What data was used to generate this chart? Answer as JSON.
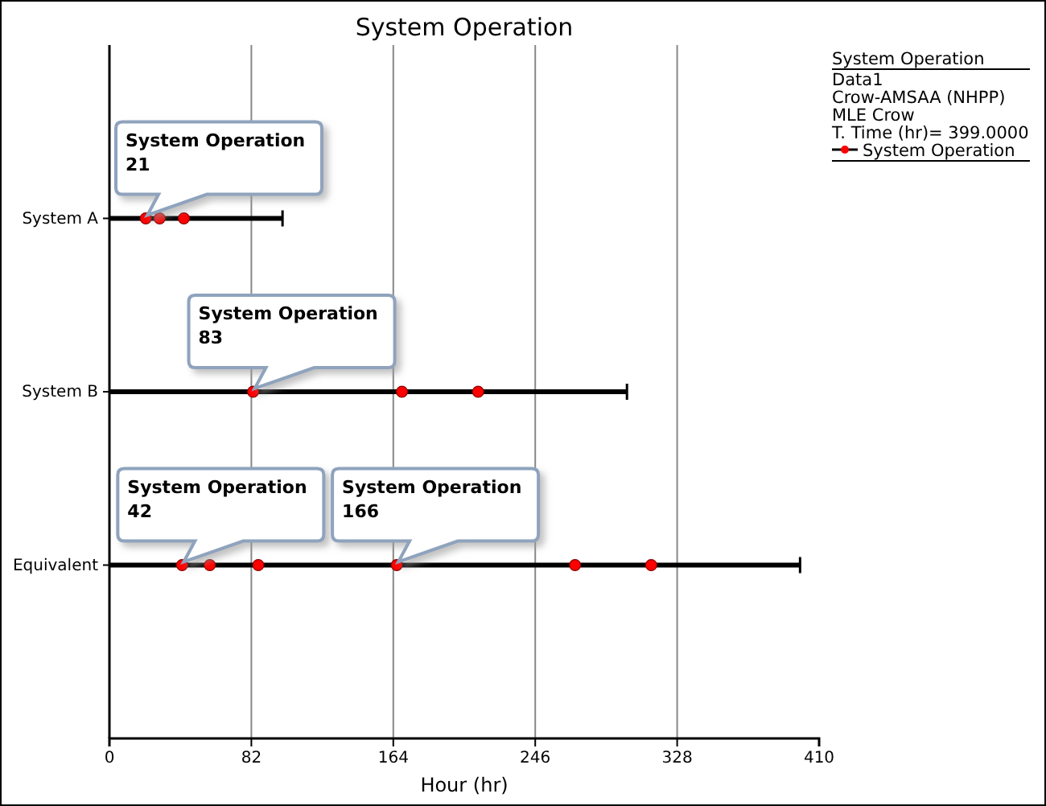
{
  "chart_data": {
    "type": "scatter",
    "title": "System Operation",
    "xlabel": "Hour (hr)",
    "orientation": "horizontal",
    "categories": [
      "System A",
      "System B",
      "Equivalent"
    ],
    "series": [
      {
        "type": "bar",
        "color": "#000000",
        "values": [
          100,
          299,
          399
        ]
      },
      {
        "name": "System Operation",
        "color": "#ff0000",
        "x": [
          "System A",
          "System A",
          "System A",
          "System B",
          "System B",
          "System B",
          "Equivalent",
          "Equivalent",
          "Equivalent",
          "Equivalent",
          "Equivalent",
          "Equivalent"
        ],
        "values": [
          21,
          29,
          43,
          83,
          169,
          213,
          42,
          58,
          86,
          166,
          269,
          313
        ]
      }
    ],
    "xlim": [
      0,
      410
    ],
    "xticks": [
      0,
      82,
      164,
      246,
      328,
      410
    ],
    "grid": "x",
    "marker": "circle",
    "legend": "right",
    "legend_title": "System Operation",
    "annotations": [
      {
        "text": "System Operation\n21",
        "x": 21,
        "y": "System A"
      },
      {
        "text": "System Operation\n83",
        "x": 83,
        "y": "System B"
      },
      {
        "text": "System Operation\n42",
        "x": 42,
        "y": "Equivalent"
      },
      {
        "text": "System Operation\n166",
        "x": 166,
        "y": "Equivalent"
      },
      "Data1",
      "Crow-AMSAA (NHPP)",
      "MLE Crow",
      "T. Time (hr)= 399.0000"
    ]
  }
}
